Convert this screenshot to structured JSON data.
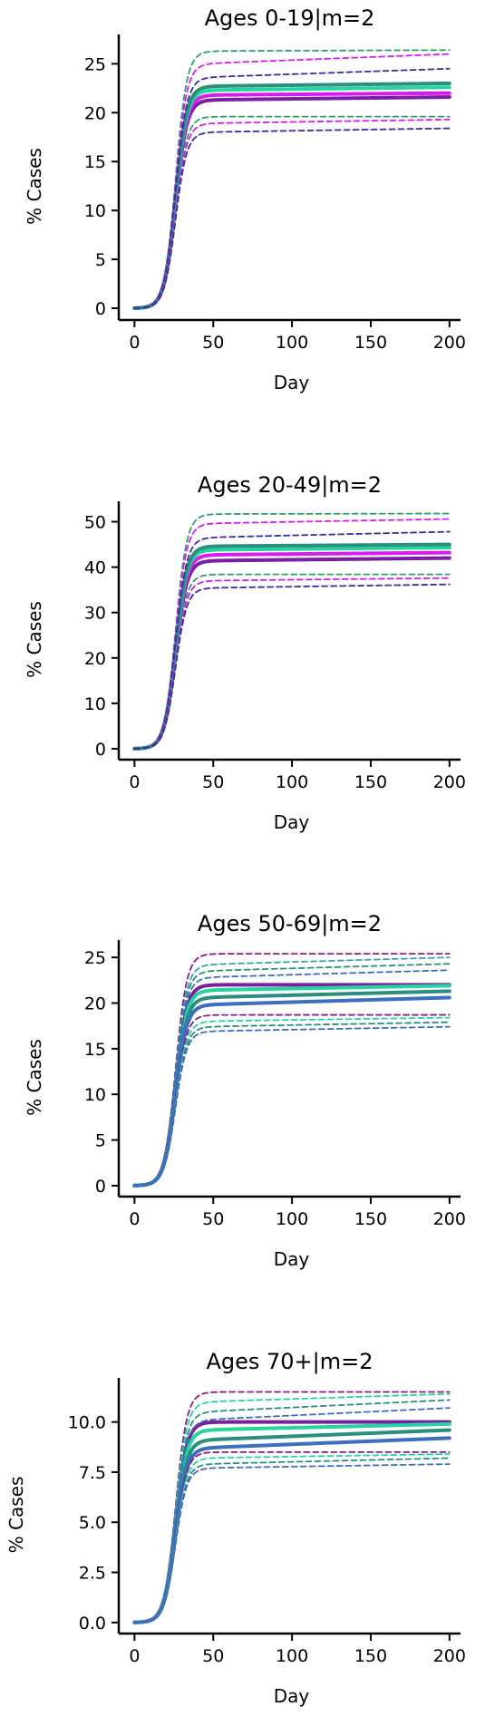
{
  "chart_data": [
    {
      "type": "line",
      "title": "Ages 0-19|m=2",
      "xlabel": "Day",
      "ylabel": "% Cases",
      "xlim": [
        -10,
        207
      ],
      "ylim": [
        -1.2,
        28
      ],
      "xticks": [
        0,
        50,
        100,
        150,
        200
      ],
      "xtick_labels": [
        "0",
        "50",
        "100",
        "150",
        "200"
      ],
      "yticks": [
        0,
        5,
        10,
        15,
        20,
        25
      ],
      "ytick_labels": [
        "0",
        "5",
        "10",
        "15",
        "20",
        "25"
      ],
      "grid": false,
      "series": [
        {
          "style": "solid",
          "color": "#7a1fa2",
          "plateau": 21.3,
          "end": 21.6
        },
        {
          "style": "solid",
          "color": "#d81cf0",
          "plateau": 21.8,
          "end": 22.0
        },
        {
          "style": "solid",
          "color": "#26d4a0",
          "plateau": 22.3,
          "end": 22.6
        },
        {
          "style": "solid",
          "color": "#2a8f7f",
          "plateau": 22.7,
          "end": 23.0
        },
        {
          "style": "dashed",
          "color": "#2e9e6e",
          "plateau": 26.3,
          "end": 26.4
        },
        {
          "style": "dashed",
          "color": "#d81cf0",
          "plateau": 25.0,
          "end": 26.0
        },
        {
          "style": "dashed",
          "color": "#3b2c9e",
          "plateau": 23.6,
          "end": 24.5
        },
        {
          "style": "dashed",
          "color": "#2e9e6e",
          "plateau": 19.6,
          "end": 19.6
        },
        {
          "style": "dashed",
          "color": "#d81cf0",
          "plateau": 18.9,
          "end": 19.3
        },
        {
          "style": "dashed",
          "color": "#3b2c9e",
          "plateau": 18.0,
          "end": 18.4
        }
      ]
    },
    {
      "type": "line",
      "title": "Ages 20-49|m=2",
      "xlabel": "Day",
      "ylabel": "% Cases",
      "xlim": [
        -10,
        207
      ],
      "ylim": [
        -2.4,
        54.5
      ],
      "xticks": [
        0,
        50,
        100,
        150,
        200
      ],
      "xtick_labels": [
        "0",
        "50",
        "100",
        "150",
        "200"
      ],
      "yticks": [
        0,
        10,
        20,
        30,
        40,
        50
      ],
      "ytick_labels": [
        "0",
        "10",
        "20",
        "30",
        "40",
        "50"
      ],
      "grid": false,
      "series": [
        {
          "style": "solid",
          "color": "#7a1fa2",
          "plateau": 41.4,
          "end": 42.0
        },
        {
          "style": "solid",
          "color": "#d81cf0",
          "plateau": 42.7,
          "end": 43.2
        },
        {
          "style": "solid",
          "color": "#26d4a0",
          "plateau": 43.8,
          "end": 44.3
        },
        {
          "style": "solid",
          "color": "#2a8f7f",
          "plateau": 44.6,
          "end": 45.0
        },
        {
          "style": "dashed",
          "color": "#2e9e6e",
          "plateau": 51.7,
          "end": 51.8
        },
        {
          "style": "dashed",
          "color": "#d81cf0",
          "plateau": 49.6,
          "end": 50.6
        },
        {
          "style": "dashed",
          "color": "#3b2c9e",
          "plateau": 46.5,
          "end": 47.8
        },
        {
          "style": "dashed",
          "color": "#2e9e6e",
          "plateau": 38.4,
          "end": 38.4
        },
        {
          "style": "dashed",
          "color": "#d81cf0",
          "plateau": 37.0,
          "end": 37.6
        },
        {
          "style": "dashed",
          "color": "#3b2c9e",
          "plateau": 35.4,
          "end": 36.2
        }
      ]
    },
    {
      "type": "line",
      "title": "Ages 50-69|m=2",
      "xlabel": "Day",
      "ylabel": "% Cases",
      "xlim": [
        -10,
        207
      ],
      "ylim": [
        -1.2,
        26.9
      ],
      "xticks": [
        0,
        50,
        100,
        150,
        200
      ],
      "xtick_labels": [
        "0",
        "50",
        "100",
        "150",
        "200"
      ],
      "yticks": [
        0,
        5,
        10,
        15,
        20,
        25
      ],
      "ytick_labels": [
        "0",
        "5",
        "10",
        "15",
        "20",
        "25"
      ],
      "grid": false,
      "series": [
        {
          "style": "solid",
          "color": "#7a1fa2",
          "plateau": 22.0,
          "end": 22.0
        },
        {
          "style": "solid",
          "color": "#26d4a0",
          "plateau": 21.4,
          "end": 21.9
        },
        {
          "style": "solid",
          "color": "#2a8f7f",
          "plateau": 20.6,
          "end": 21.3
        },
        {
          "style": "solid",
          "color": "#3c6fbf",
          "plateau": 19.8,
          "end": 20.6
        },
        {
          "style": "dashed",
          "color": "#8b1a8f",
          "plateau": 25.4,
          "end": 25.4
        },
        {
          "style": "dashed",
          "color": "#3aa3b2",
          "plateau": 24.2,
          "end": 25.0
        },
        {
          "style": "dashed",
          "color": "#2a8f7f",
          "plateau": 23.5,
          "end": 24.3
        },
        {
          "style": "dashed",
          "color": "#3c6fbf",
          "plateau": 22.8,
          "end": 23.6
        },
        {
          "style": "dashed",
          "color": "#8b1a8f",
          "plateau": 18.7,
          "end": 18.7
        },
        {
          "style": "dashed",
          "color": "#26d4a0",
          "plateau": 18.0,
          "end": 18.4
        },
        {
          "style": "dashed",
          "color": "#2a8f7f",
          "plateau": 17.4,
          "end": 17.9
        },
        {
          "style": "dashed",
          "color": "#3c6fbf",
          "plateau": 16.9,
          "end": 17.4
        }
      ]
    },
    {
      "type": "line",
      "title": "Ages 70+|m=2",
      "xlabel": "Day",
      "ylabel": "% Cases",
      "xlim": [
        -10,
        207
      ],
      "ylim": [
        -0.55,
        12.2
      ],
      "xticks": [
        0,
        50,
        100,
        150,
        200
      ],
      "xtick_labels": [
        "0",
        "50",
        "100",
        "150",
        "200"
      ],
      "yticks": [
        0,
        2.5,
        5,
        7.5,
        10
      ],
      "ytick_labels": [
        "0.0",
        "2.5",
        "5.0",
        "7.5",
        "10.0"
      ],
      "grid": false,
      "series": [
        {
          "style": "solid",
          "color": "#7a1fa2",
          "plateau": 10.0,
          "end": 10.0
        },
        {
          "style": "solid",
          "color": "#26d4a0",
          "plateau": 9.6,
          "end": 9.9
        },
        {
          "style": "solid",
          "color": "#2a8f7f",
          "plateau": 9.1,
          "end": 9.6
        },
        {
          "style": "solid",
          "color": "#3c6fbf",
          "plateau": 8.7,
          "end": 9.2
        },
        {
          "style": "dashed",
          "color": "#8b1a8f",
          "plateau": 11.5,
          "end": 11.5
        },
        {
          "style": "dashed",
          "color": "#26d4a0",
          "plateau": 11.0,
          "end": 11.4
        },
        {
          "style": "dashed",
          "color": "#2a8f7f",
          "plateau": 10.5,
          "end": 11.1
        },
        {
          "style": "dashed",
          "color": "#3c6fbf",
          "plateau": 10.1,
          "end": 10.7
        },
        {
          "style": "dashed",
          "color": "#8b1a8f",
          "plateau": 8.5,
          "end": 8.5
        },
        {
          "style": "dashed",
          "color": "#26d4a0",
          "plateau": 8.2,
          "end": 8.4
        },
        {
          "style": "dashed",
          "color": "#2a8f7f",
          "plateau": 7.9,
          "end": 8.2
        },
        {
          "style": "dashed",
          "color": "#3c6fbf",
          "plateau": 7.7,
          "end": 7.9
        }
      ]
    }
  ]
}
